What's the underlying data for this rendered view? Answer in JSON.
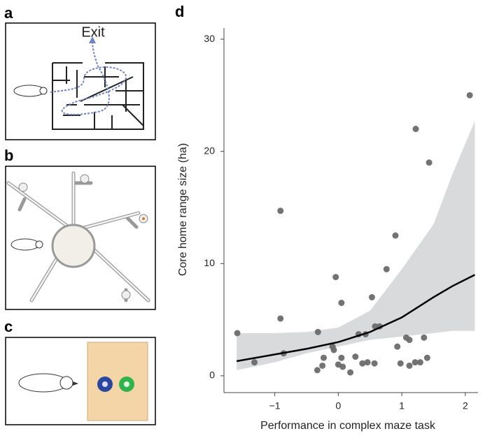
{
  "panel_labels": [
    "a",
    "b",
    "c",
    "d"
  ],
  "maze_label": "Exit",
  "chart_data": {
    "type": "scatter",
    "x_label": "Performance in complex maze task",
    "y_label": "Core home range size (ha)",
    "x": [
      -1.59,
      -1.32,
      -0.91,
      -0.91,
      -0.86,
      -0.33,
      -0.32,
      -0.25,
      -0.23,
      -0.09,
      -0.07,
      -0.04,
      0,
      0.05,
      0.05,
      0.07,
      0.19,
      0.27,
      0.32,
      0.38,
      0.43,
      0.46,
      0.53,
      0.57,
      0.58,
      0.65,
      0.76,
      0.9,
      0.93,
      0.98,
      1.07,
      1.12,
      1.12,
      1.22,
      1.21,
      1.29,
      1.35,
      1.4,
      1.43,
      2.07
    ],
    "values": [
      3.8,
      1.2,
      14.7,
      5.1,
      2.0,
      0.5,
      3.9,
      0.9,
      1.6,
      2.6,
      2.3,
      8.8,
      1.0,
      6.5,
      1.6,
      0.8,
      0.3,
      1.7,
      3.7,
      1.1,
      3.7,
      1.2,
      7.0,
      1.1,
      4.4,
      4.4,
      9.5,
      12.5,
      2.6,
      1.1,
      3.4,
      3.2,
      0.9,
      22.0,
      1.2,
      1.2,
      3.4,
      1.6,
      19.0,
      25.0
    ],
    "color": "#6b6b6b",
    "fit": {
      "x": [
        -1.6,
        -1,
        -0.5,
        0,
        0.5,
        1,
        1.5,
        1.8,
        2.15
      ],
      "values": [
        1.3,
        1.9,
        2.4,
        3.0,
        3.9,
        5.2,
        7.0,
        8.0,
        9.0
      ],
      "lower": [
        0.5,
        1.2,
        2.0,
        2.6,
        3.2,
        3.5,
        3.8,
        4.0,
        4.0
      ],
      "upper": [
        3.8,
        3.8,
        3.9,
        4.3,
        5.8,
        9.5,
        13.5,
        18.0,
        22.7
      ],
      "color": "#000000",
      "band_color": "#d9dadb"
    },
    "xlim": [
      -1.8,
      2.2
    ],
    "ylim": [
      -1.5,
      31
    ],
    "xticks": [
      {
        "value": -1,
        "label": "−1"
      },
      0,
      1,
      2
    ],
    "yticks": [
      0,
      10,
      20,
      30
    ],
    "grid": false
  }
}
